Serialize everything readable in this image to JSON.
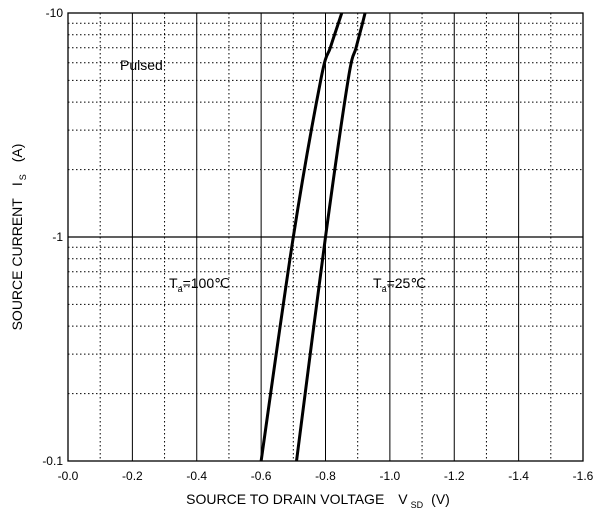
{
  "chart_data": {
    "type": "line",
    "xlabel": {
      "main": "SOURCE TO DRAIN VOLTAGE",
      "symbol": "V",
      "subscript": "SD",
      "unit": "(V)"
    },
    "ylabel": {
      "main": "SOURCE CURRENT",
      "symbol": "I",
      "subscript": "S",
      "unit": "(A)"
    },
    "xlim": [
      0.0,
      -1.6
    ],
    "ylim": [
      -0.1,
      -10
    ],
    "y_scale": "log",
    "x_ticks": [
      "-0.0",
      "-0.2",
      "-0.4",
      "-0.6",
      "-0.8",
      "-1.0",
      "-1.2",
      "-1.4",
      "-1.6"
    ],
    "x_tick_values": [
      0.0,
      -0.2,
      -0.4,
      -0.6,
      -0.8,
      -1.0,
      -1.2,
      -1.4,
      -1.6
    ],
    "y_ticks": [
      "-0.1",
      "-1",
      "-10"
    ],
    "y_tick_values": [
      -0.1,
      -1,
      -10
    ],
    "grid": true,
    "annotations": [
      {
        "text": "Pulsed"
      }
    ],
    "series": [
      {
        "label_main": "T",
        "label_sub": "a",
        "label_rest": "=100℃",
        "x": [
          -0.6,
          -0.7,
          -0.785,
          -0.815,
          -0.84,
          -0.86
        ],
        "y": [
          -0.1,
          -1,
          -5,
          -7,
          -9,
          -11
        ]
      },
      {
        "label_main": "T",
        "label_sub": "a",
        "label_rest": "=25℃",
        "x": [
          -0.71,
          -0.8,
          -0.87,
          -0.895,
          -0.915,
          -0.93
        ],
        "y": [
          -0.1,
          -1,
          -5,
          -7,
          -9,
          -11
        ]
      }
    ]
  }
}
